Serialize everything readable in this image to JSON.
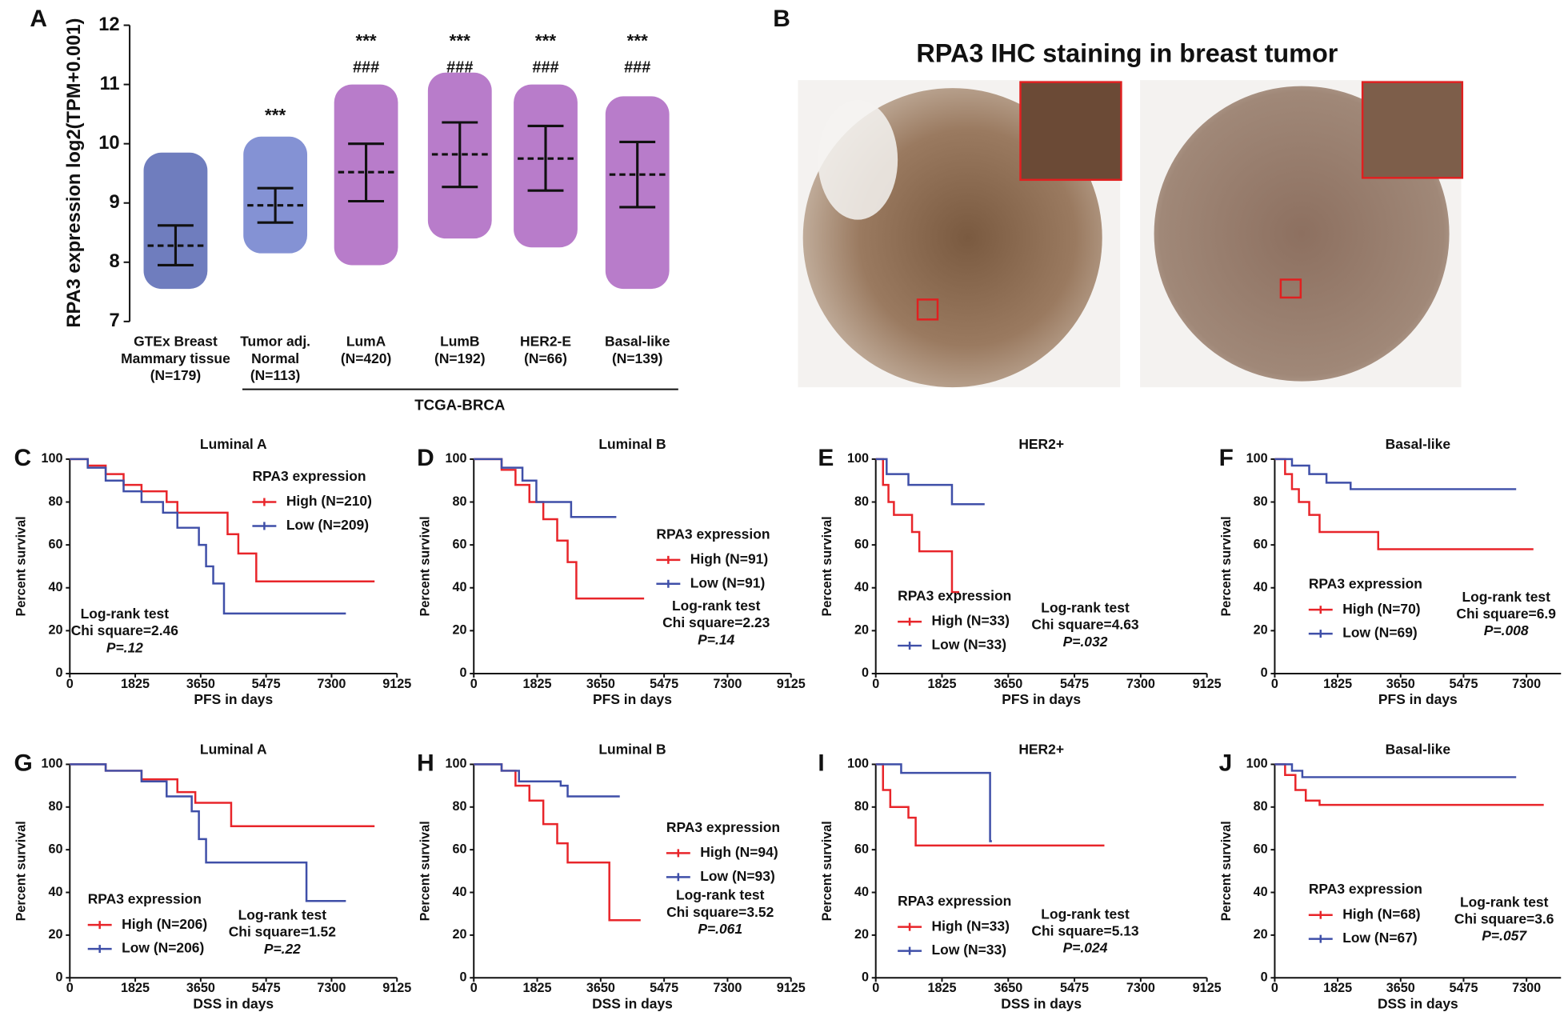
{
  "chart_data": [
    {
      "type": "dotplot",
      "letter": "A",
      "ylabel": "RPA3 expression log2(TPM+0.001)",
      "categories": [
        [
          "GTEx Breast",
          "Mammary tissue",
          "(N=179)"
        ],
        [
          "Tumor adj.",
          "Normal",
          "(N=113)"
        ],
        [
          "LumA",
          "(N=420)"
        ],
        [
          "LumB",
          "(N=192)"
        ],
        [
          "HER2-E",
          "(N=66)"
        ],
        [
          "Basal-like",
          "(N=139)"
        ]
      ],
      "colors": [
        "#3f51a8",
        "#5b6ec5",
        "#a050b8",
        "#a050b8",
        "#a050b8",
        "#a050b8"
      ],
      "mean": [
        8.28,
        8.96,
        9.52,
        9.82,
        9.75,
        9.48
      ],
      "sd_high": [
        8.62,
        9.25,
        10.0,
        10.36,
        10.3,
        10.03
      ],
      "sd_low": [
        7.95,
        8.67,
        9.03,
        9.27,
        9.21,
        8.93
      ],
      "min": [
        7.55,
        8.15,
        7.95,
        8.4,
        8.25,
        7.55
      ],
      "max": [
        9.85,
        10.12,
        11.0,
        11.2,
        11.0,
        10.8
      ],
      "stars": [
        null,
        "***",
        "***",
        "***",
        "***",
        "***"
      ],
      "hashes": [
        null,
        null,
        "###",
        "###",
        "###",
        "###"
      ],
      "group_label": "TCGA-BRCA",
      "ylim": [
        7,
        12
      ],
      "yticks": [
        7,
        8,
        9,
        10,
        11,
        12
      ]
    },
    {
      "type": "km",
      "letter": "C",
      "title": "Luminal A",
      "xlabel": "PFS in days",
      "ylabel": "Percent survival",
      "legend_title": "RPA3 expression",
      "annotations": [
        "Log-rank test",
        "Chi square=2.46",
        "P=.12"
      ],
      "xlim": [
        0,
        9125
      ],
      "xticks": [
        0,
        1825,
        3650,
        5475,
        7300,
        9125
      ],
      "ylim": [
        0,
        100
      ],
      "yticks": [
        0,
        20,
        40,
        60,
        80,
        100
      ],
      "series": [
        {
          "name": "High (N=210)",
          "color": "#e8252a",
          "x": [
            0,
            500,
            1000,
            1500,
            2000,
            2700,
            3000,
            4200,
            4400,
            4700,
            5200,
            8500
          ],
          "values": [
            100,
            97,
            93,
            88,
            85,
            80,
            75,
            75,
            65,
            56,
            43,
            43
          ]
        },
        {
          "name": "Low (N=209)",
          "color": "#3f4fa8",
          "x": [
            0,
            500,
            1000,
            1500,
            2000,
            2600,
            3000,
            3600,
            3800,
            4000,
            4300,
            7700
          ],
          "values": [
            100,
            96,
            90,
            85,
            80,
            75,
            68,
            60,
            50,
            42,
            28,
            28
          ]
        }
      ]
    },
    {
      "type": "km",
      "letter": "D",
      "title": "Luminal B",
      "xlabel": "PFS in days",
      "ylabel": "Percent survival",
      "legend_title": "RPA3 expression",
      "annotations": [
        "Log-rank test",
        "Chi square=2.23",
        "P=.14"
      ],
      "xlim": [
        0,
        9125
      ],
      "xticks": [
        0,
        1825,
        3650,
        5475,
        7300,
        9125
      ],
      "ylim": [
        0,
        100
      ],
      "yticks": [
        0,
        20,
        40,
        60,
        80,
        100
      ],
      "series": [
        {
          "name": "High (N=91)",
          "color": "#e8252a",
          "x": [
            0,
            800,
            1200,
            1600,
            2000,
            2400,
            2700,
            2950,
            4900
          ],
          "values": [
            100,
            95,
            88,
            80,
            72,
            62,
            52,
            35,
            35
          ]
        },
        {
          "name": "Low (N=91)",
          "color": "#3f4fa8",
          "x": [
            0,
            800,
            1400,
            1800,
            2800,
            4100
          ],
          "values": [
            100,
            96,
            90,
            80,
            73,
            73
          ]
        }
      ]
    },
    {
      "type": "km",
      "letter": "E",
      "title": "HER2+",
      "xlabel": "PFS in days",
      "ylabel": "Percent survival",
      "legend_title": "RPA3 expression",
      "annotations": [
        "Log-rank test",
        "Chi square=4.63",
        "P=.032"
      ],
      "xlim": [
        0,
        9125
      ],
      "xticks": [
        0,
        1825,
        3650,
        5475,
        7300,
        9125
      ],
      "ylim": [
        0,
        100
      ],
      "yticks": [
        0,
        20,
        40,
        60,
        80,
        100
      ],
      "series": [
        {
          "name": "High (N=33)",
          "color": "#e8252a",
          "x": [
            0,
            200,
            350,
            500,
            1000,
            1200,
            2100,
            2300
          ],
          "values": [
            100,
            88,
            80,
            74,
            66,
            57,
            38,
            38
          ]
        },
        {
          "name": "Low (N=33)",
          "color": "#3f4fa8",
          "x": [
            0,
            300,
            900,
            2100,
            3000
          ],
          "values": [
            100,
            93,
            88,
            79,
            79
          ]
        }
      ]
    },
    {
      "type": "km",
      "letter": "F",
      "title": "Basal-like",
      "xlabel": "PFS in days",
      "ylabel": "Percent survival",
      "legend_title": "RPA3 expression",
      "annotations": [
        "Log-rank test",
        "Chi square=6.9",
        "P=.008"
      ],
      "xlim": [
        0,
        8300
      ],
      "xticks": [
        0,
        1825,
        3650,
        5475,
        7300
      ],
      "ylim": [
        0,
        100
      ],
      "yticks": [
        0,
        20,
        40,
        60,
        80,
        100
      ],
      "series": [
        {
          "name": "High (N=70)",
          "color": "#e8252a",
          "x": [
            0,
            300,
            500,
            700,
            1000,
            1300,
            3000,
            7500
          ],
          "values": [
            100,
            93,
            86,
            80,
            74,
            66,
            58,
            58
          ]
        },
        {
          "name": "Low (N=69)",
          "color": "#3f4fa8",
          "x": [
            0,
            500,
            1000,
            1500,
            2200,
            7000
          ],
          "values": [
            100,
            97,
            93,
            89,
            86,
            86
          ]
        }
      ]
    },
    {
      "type": "km",
      "letter": "G",
      "title": "Luminal A",
      "xlabel": "DSS in days",
      "ylabel": "Percent survival",
      "legend_title": "RPA3 expression",
      "annotations": [
        "Log-rank test",
        "Chi square=1.52",
        "P=.22"
      ],
      "xlim": [
        0,
        9125
      ],
      "xticks": [
        0,
        1825,
        3650,
        5475,
        7300,
        9125
      ],
      "ylim": [
        0,
        100
      ],
      "yticks": [
        0,
        20,
        40,
        60,
        80,
        100
      ],
      "series": [
        {
          "name": "High (N=206)",
          "color": "#e8252a",
          "x": [
            0,
            1000,
            2000,
            3000,
            3500,
            4500,
            8500
          ],
          "values": [
            100,
            97,
            93,
            87,
            82,
            71,
            71
          ]
        },
        {
          "name": "Low (N=206)",
          "color": "#3f4fa8",
          "x": [
            0,
            1000,
            2000,
            2700,
            3400,
            3600,
            3800,
            6500,
            6600,
            7700
          ],
          "values": [
            100,
            97,
            92,
            85,
            78,
            65,
            54,
            54,
            36,
            36
          ]
        }
      ]
    },
    {
      "type": "km",
      "letter": "H",
      "title": "Luminal B",
      "xlabel": "DSS in days",
      "ylabel": "Percent survival",
      "legend_title": "RPA3 expression",
      "annotations": [
        "Log-rank test",
        "Chi square=3.52",
        "P=.061"
      ],
      "xlim": [
        0,
        9125
      ],
      "xticks": [
        0,
        1825,
        3650,
        5475,
        7300,
        9125
      ],
      "ylim": [
        0,
        100
      ],
      "yticks": [
        0,
        20,
        40,
        60,
        80,
        100
      ],
      "series": [
        {
          "name": "High (N=94)",
          "color": "#e8252a",
          "x": [
            0,
            800,
            1200,
            1600,
            2000,
            2400,
            2700,
            3800,
            3900,
            4800
          ],
          "values": [
            100,
            97,
            90,
            83,
            72,
            63,
            54,
            54,
            27,
            27
          ]
        },
        {
          "name": "Low (N=93)",
          "color": "#3f4fa8",
          "x": [
            0,
            800,
            1300,
            2500,
            2700,
            4200
          ],
          "values": [
            100,
            97,
            92,
            90,
            85,
            85
          ]
        }
      ]
    },
    {
      "type": "km",
      "letter": "I",
      "title": "HER2+",
      "xlabel": "DSS in days",
      "ylabel": "Percent survival",
      "legend_title": "RPA3 expression",
      "annotations": [
        "Log-rank test",
        "Chi square=5.13",
        "P=.024"
      ],
      "xlim": [
        0,
        9125
      ],
      "xticks": [
        0,
        1825,
        3650,
        5475,
        7300,
        9125
      ],
      "ylim": [
        0,
        100
      ],
      "yticks": [
        0,
        20,
        40,
        60,
        80,
        100
      ],
      "series": [
        {
          "name": "High (N=33)",
          "color": "#e8252a",
          "x": [
            0,
            200,
            400,
            900,
            1100,
            6300
          ],
          "values": [
            100,
            88,
            80,
            75,
            62,
            62
          ]
        },
        {
          "name": "Low (N=33)",
          "color": "#3f4fa8",
          "x": [
            0,
            700,
            3100,
            3150,
            3200
          ],
          "values": [
            100,
            96,
            96,
            64,
            64
          ]
        }
      ]
    },
    {
      "type": "km",
      "letter": "J",
      "title": "Basal-like",
      "xlabel": "DSS in days",
      "ylabel": "Percent survival",
      "legend_title": "RPA3 expression",
      "annotations": [
        "Log-rank test",
        "Chi square=3.6",
        "P=.057"
      ],
      "xlim": [
        0,
        8300
      ],
      "xticks": [
        0,
        1825,
        3650,
        5475,
        7300
      ],
      "ylim": [
        0,
        100
      ],
      "yticks": [
        0,
        20,
        40,
        60,
        80,
        100
      ],
      "series": [
        {
          "name": "High (N=68)",
          "color": "#e8252a",
          "x": [
            0,
            300,
            600,
            900,
            1300,
            7800
          ],
          "values": [
            100,
            95,
            88,
            83,
            81,
            81
          ]
        },
        {
          "name": "Low (N=67)",
          "color": "#3f4fa8",
          "x": [
            0,
            500,
            800,
            7000
          ],
          "values": [
            100,
            97,
            94,
            94
          ]
        }
      ]
    }
  ],
  "image_panel": {
    "letter": "B",
    "title": "RPA3 IHC staining in breast tumor"
  }
}
